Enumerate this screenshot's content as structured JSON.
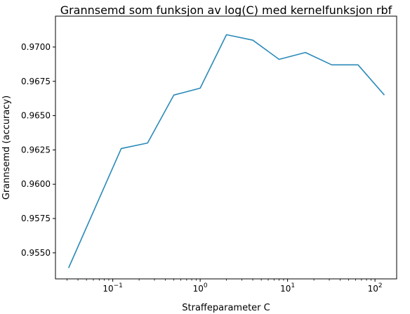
{
  "chart_data": {
    "type": "line",
    "title": "Grannsemd som funksjon av log(C) med kernelfunksjon rbf",
    "xlabel": "Straffeparameter C",
    "ylabel": "Grannsemd (accuracy)",
    "xscale": "log",
    "xlim": [
      0.0221,
      177
    ],
    "ylim": [
      0.9531,
      0.97225
    ],
    "grid": false,
    "line_color": "#2a8ab9",
    "x_major_ticks": [
      {
        "value": 0.1,
        "base": "10",
        "exp": "−1"
      },
      {
        "value": 1,
        "base": "10",
        "exp": "0"
      },
      {
        "value": 10,
        "base": "10",
        "exp": "1"
      },
      {
        "value": 100,
        "base": "10",
        "exp": "2"
      }
    ],
    "y_ticks": [
      {
        "value": 0.955,
        "label": "0.9550"
      },
      {
        "value": 0.9575,
        "label": "0.9575"
      },
      {
        "value": 0.96,
        "label": "0.9600"
      },
      {
        "value": 0.9625,
        "label": "0.9625"
      },
      {
        "value": 0.965,
        "label": "0.9650"
      },
      {
        "value": 0.9675,
        "label": "0.9675"
      },
      {
        "value": 0.97,
        "label": "0.9700"
      }
    ],
    "series": [
      {
        "x": [
          0.03125,
          0.125,
          0.25,
          0.5,
          1,
          2,
          4,
          8,
          16,
          32,
          64,
          128
        ],
        "values": [
          0.9539,
          0.9626,
          0.963,
          0.9665,
          0.967,
          0.9709,
          0.9705,
          0.9691,
          0.9696,
          0.9687,
          0.9687,
          0.9665
        ]
      }
    ]
  }
}
